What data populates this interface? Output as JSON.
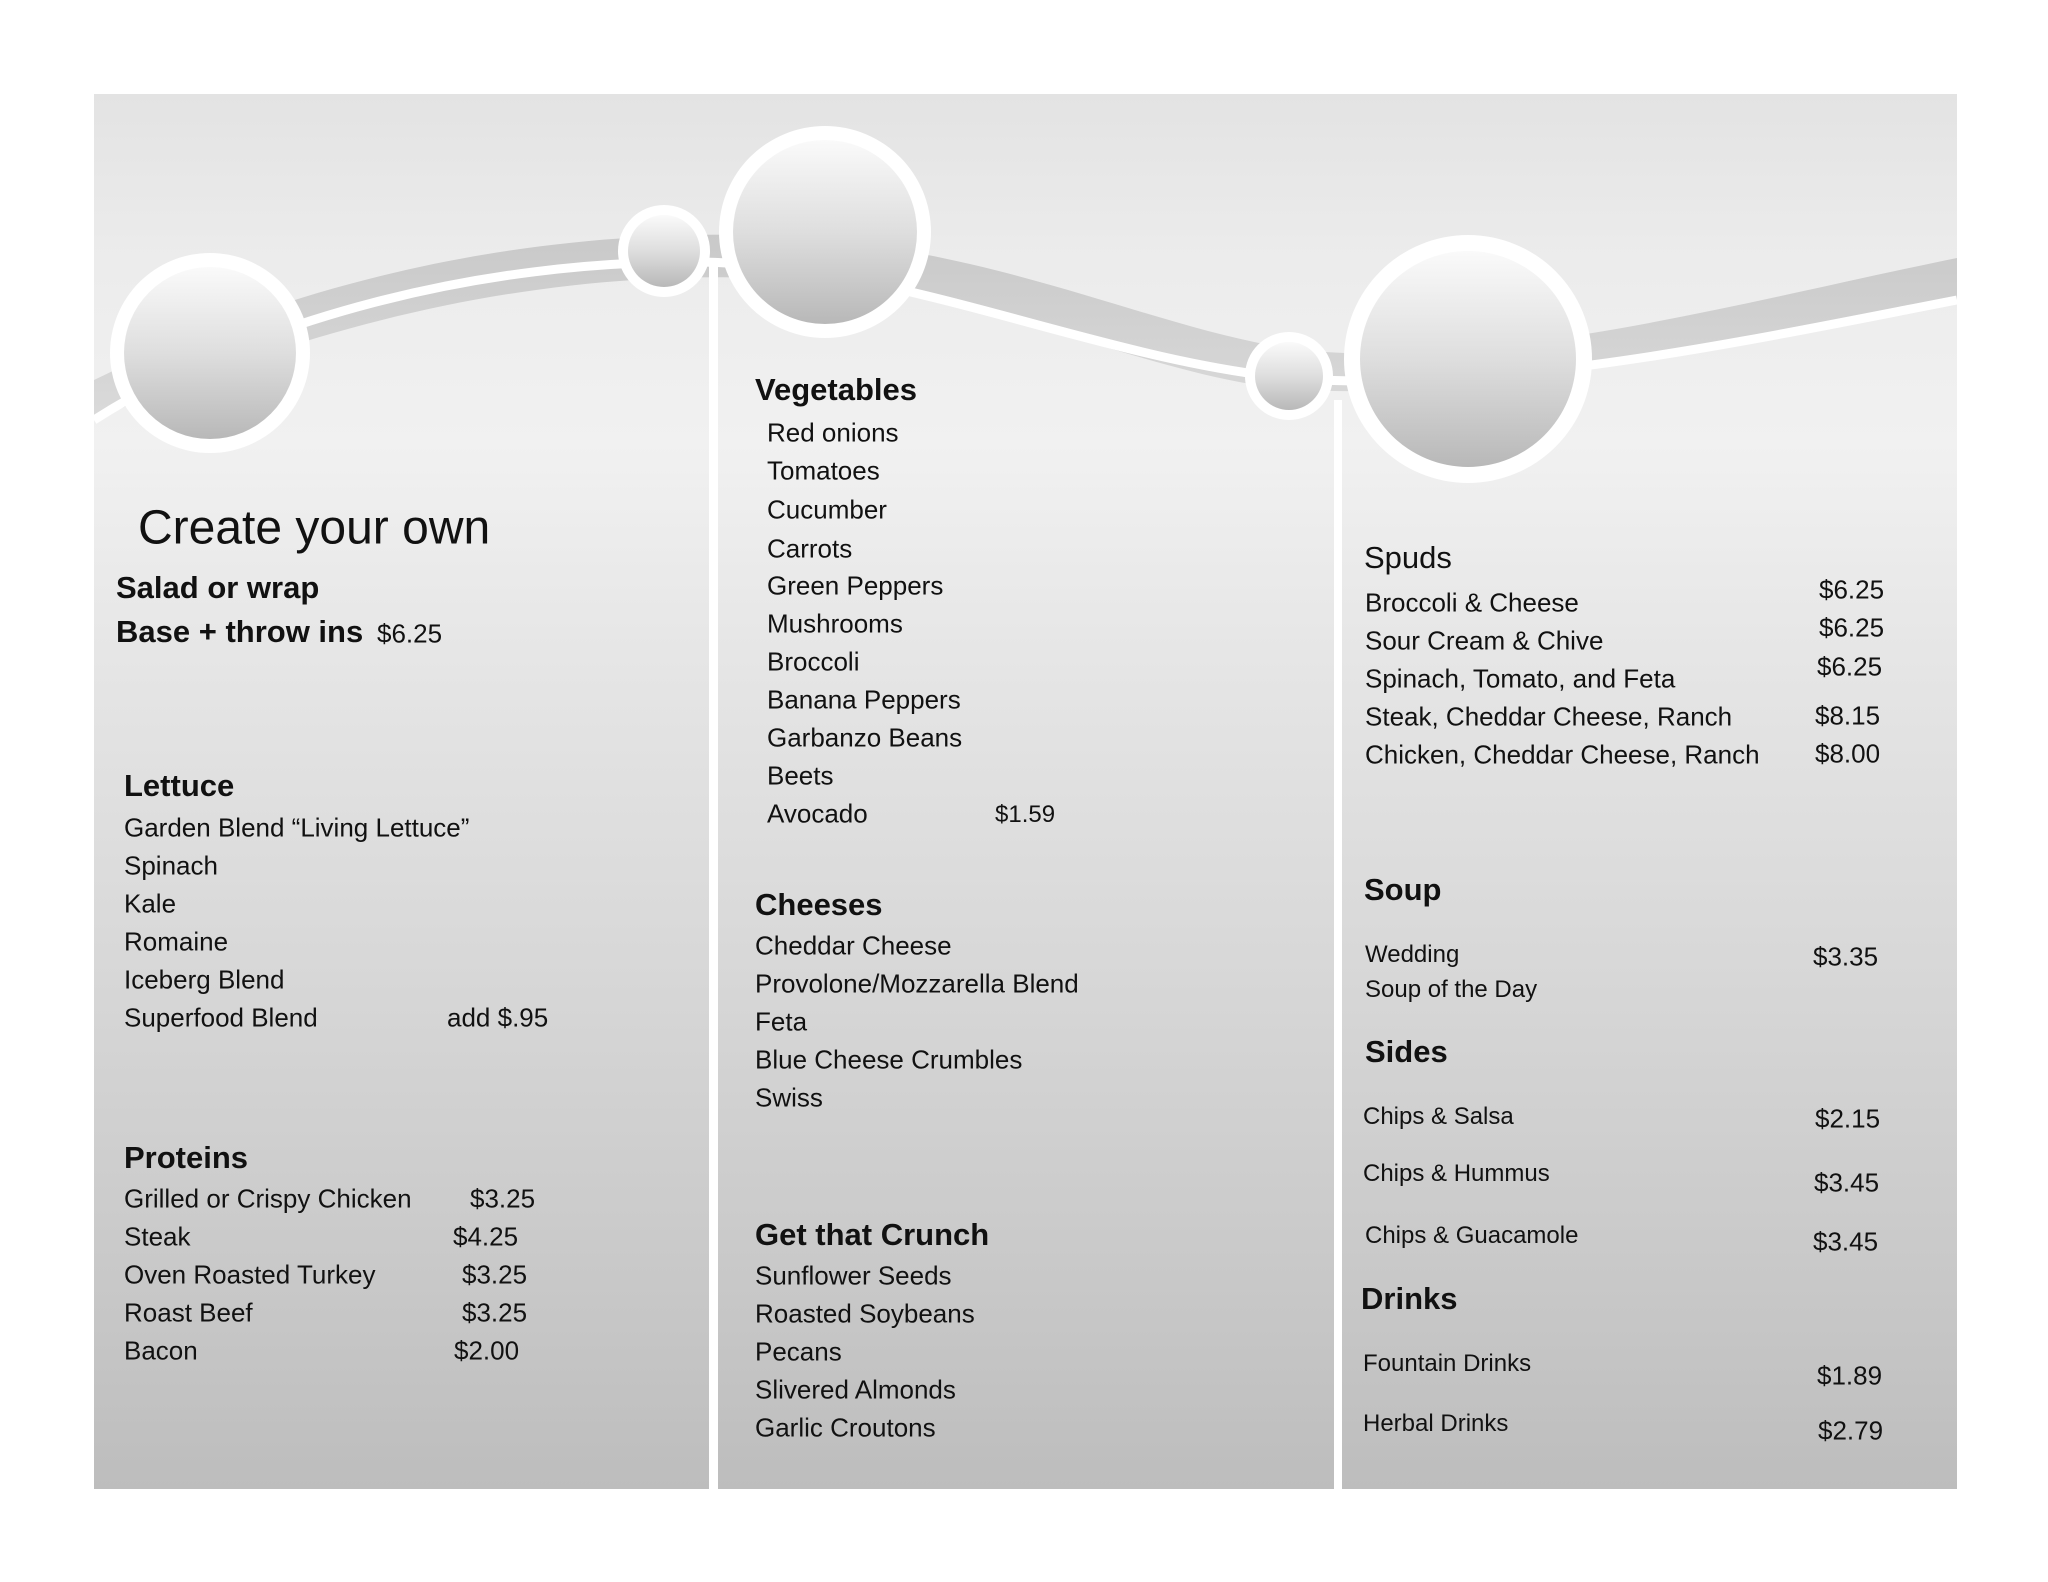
{
  "colors": {
    "page_top": "#e3e3e3",
    "page_bottom": "#bdbdbd",
    "separator": "#ffffff",
    "text": "#111111"
  },
  "left": {
    "title": "Create your own",
    "subtitle": "Salad or wrap",
    "base_label": "Base + throw ins",
    "base_price": "$6.25",
    "lettuce": {
      "heading": "Lettuce",
      "items": [
        "Garden Blend “Living Lettuce”",
        "Spinach",
        "Kale",
        "Romaine",
        "Iceberg Blend",
        "Superfood Blend"
      ],
      "superfood_price": "add $.95"
    },
    "proteins": {
      "heading": "Proteins",
      "items": [
        {
          "name": "Grilled or Crispy Chicken",
          "price": "$3.25"
        },
        {
          "name": "Steak",
          "price": "$4.25"
        },
        {
          "name": "Oven Roasted Turkey",
          "price": "$3.25"
        },
        {
          "name": "Roast Beef",
          "price": "$3.25"
        },
        {
          "name": "Bacon",
          "price": "$2.00"
        }
      ]
    }
  },
  "middle": {
    "vegetables": {
      "heading": "Vegetables",
      "items": [
        "Red onions",
        "Tomatoes",
        "Cucumber",
        "Carrots",
        "Green Peppers",
        "Mushrooms",
        "Broccoli",
        "Banana Peppers",
        "Garbanzo Beans",
        "Beets",
        "Avocado"
      ],
      "avocado_price": "$1.59"
    },
    "cheeses": {
      "heading": "Cheeses",
      "items": [
        "Cheddar Cheese",
        "Provolone/Mozzarella Blend",
        "Feta",
        "Blue Cheese Crumbles",
        "Swiss"
      ]
    },
    "crunch": {
      "heading": "Get that Crunch",
      "items": [
        "Sunflower Seeds",
        "Roasted Soybeans",
        "Pecans",
        "Slivered Almonds",
        "Garlic Croutons"
      ]
    }
  },
  "right": {
    "spuds": {
      "heading": "Spuds",
      "items": [
        {
          "name": "Broccoli & Cheese",
          "price": "$6.25"
        },
        {
          "name": "Sour Cream & Chive",
          "price": "$6.25"
        },
        {
          "name": "Spinach, Tomato, and Feta",
          "price": "$6.25"
        },
        {
          "name": "Steak, Cheddar Cheese, Ranch",
          "price": "$8.15"
        },
        {
          "name": "Chicken, Cheddar Cheese, Ranch",
          "price": "$8.00"
        }
      ]
    },
    "soup": {
      "heading": "Soup",
      "items": [
        "Wedding",
        "Soup of the Day"
      ],
      "price": "$3.35"
    },
    "sides": {
      "heading": "Sides",
      "items": [
        {
          "name": "Chips & Salsa",
          "price": "$2.15"
        },
        {
          "name": "Chips & Hummus",
          "price": "$3.45"
        },
        {
          "name": "Chips & Guacamole",
          "price": "$3.45"
        }
      ]
    },
    "drinks": {
      "heading": "Drinks",
      "items": [
        {
          "name": "Fountain Drinks",
          "price": "$1.89"
        },
        {
          "name": "Herbal Drinks",
          "price": "$2.79"
        }
      ]
    }
  }
}
